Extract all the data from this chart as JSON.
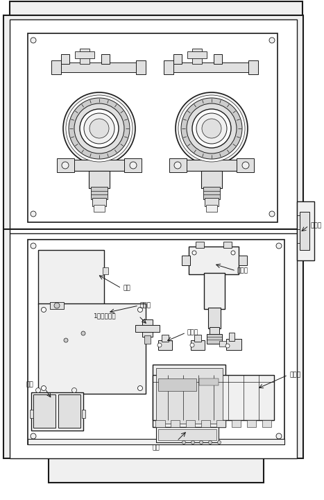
{
  "bg_color": "#ffffff",
  "lc": "#1a1a1a",
  "fc_white": "#ffffff",
  "fc_light": "#f0f0f0",
  "fc_mid": "#e0e0e0",
  "fc_dark": "#cccccc",
  "fc_darkest": "#aaaaaa",
  "labels": {
    "qi_beng": "气泵",
    "dian_lu_ban": "电路板",
    "zhuan_er_zhuan_jie_guan": "1转二转接管",
    "lv_shui_qi": "滤水器",
    "zhuan_jie_guan": "转接管",
    "kai_guan": "开关",
    "dian_yuan": "电源",
    "dian_ci_fa": "电磁阀",
    "liu_liang_ji": "流量计"
  },
  "fig_width": 4.67,
  "fig_height": 7.2,
  "dpi": 100
}
